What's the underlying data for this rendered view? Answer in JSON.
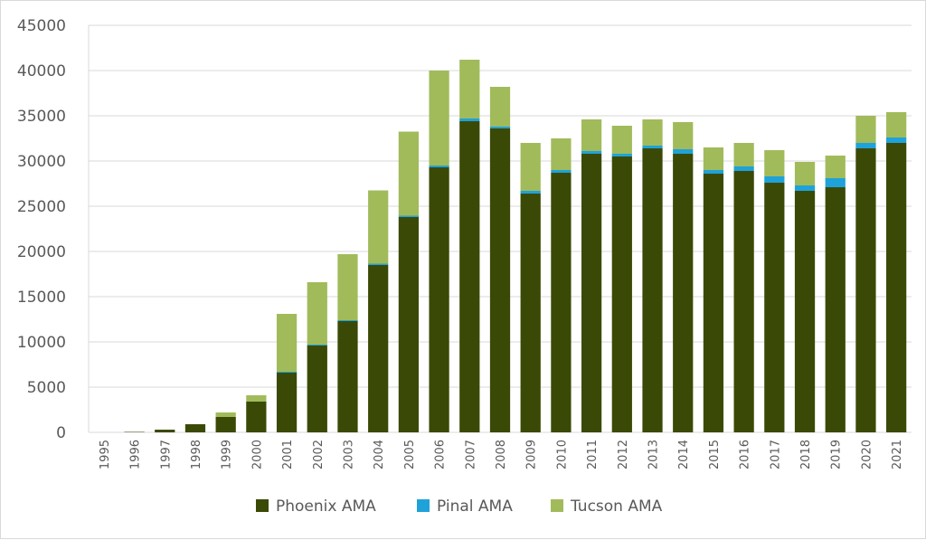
{
  "chart_data": {
    "type": "bar",
    "stacked": true,
    "title": "",
    "xlabel": "",
    "ylabel": "",
    "ylim": [
      0,
      45000
    ],
    "yticks": [
      0,
      5000,
      10000,
      15000,
      20000,
      25000,
      30000,
      35000,
      40000,
      45000
    ],
    "grid": true,
    "legend_position": "bottom",
    "categories": [
      "1995",
      "1996",
      "1997",
      "1998",
      "1999",
      "2000",
      "2001",
      "2002",
      "2003",
      "2004",
      "2005",
      "2006",
      "2007",
      "2008",
      "2009",
      "2010",
      "2011",
      "2012",
      "2013",
      "2014",
      "2015",
      "2016",
      "2017",
      "2018",
      "2019",
      "2020",
      "2021"
    ],
    "series": [
      {
        "name": "Phoenix AMA",
        "color": "#3a4a06",
        "values": [
          0,
          50,
          300,
          900,
          1700,
          3400,
          6600,
          9600,
          12300,
          18500,
          23800,
          29300,
          34400,
          33600,
          26400,
          28700,
          30800,
          30500,
          31400,
          30800,
          28600,
          28900,
          27600,
          26700,
          27100,
          31400,
          32000
        ]
      },
      {
        "name": "Pinal AMA",
        "color": "#1fa2d9",
        "values": [
          0,
          0,
          0,
          0,
          0,
          0,
          100,
          100,
          100,
          150,
          150,
          200,
          300,
          200,
          300,
          300,
          300,
          300,
          300,
          500,
          400,
          500,
          700,
          600,
          1000,
          600,
          600
        ]
      },
      {
        "name": "Tucson AMA",
        "color": "#a1bb5b",
        "values": [
          0,
          0,
          0,
          0,
          500,
          700,
          6400,
          6900,
          7300,
          8100,
          9300,
          10500,
          6500,
          4400,
          5300,
          3500,
          3500,
          3100,
          2900,
          3000,
          2500,
          2600,
          2900,
          2600,
          2500,
          3000,
          2800
        ]
      }
    ]
  }
}
